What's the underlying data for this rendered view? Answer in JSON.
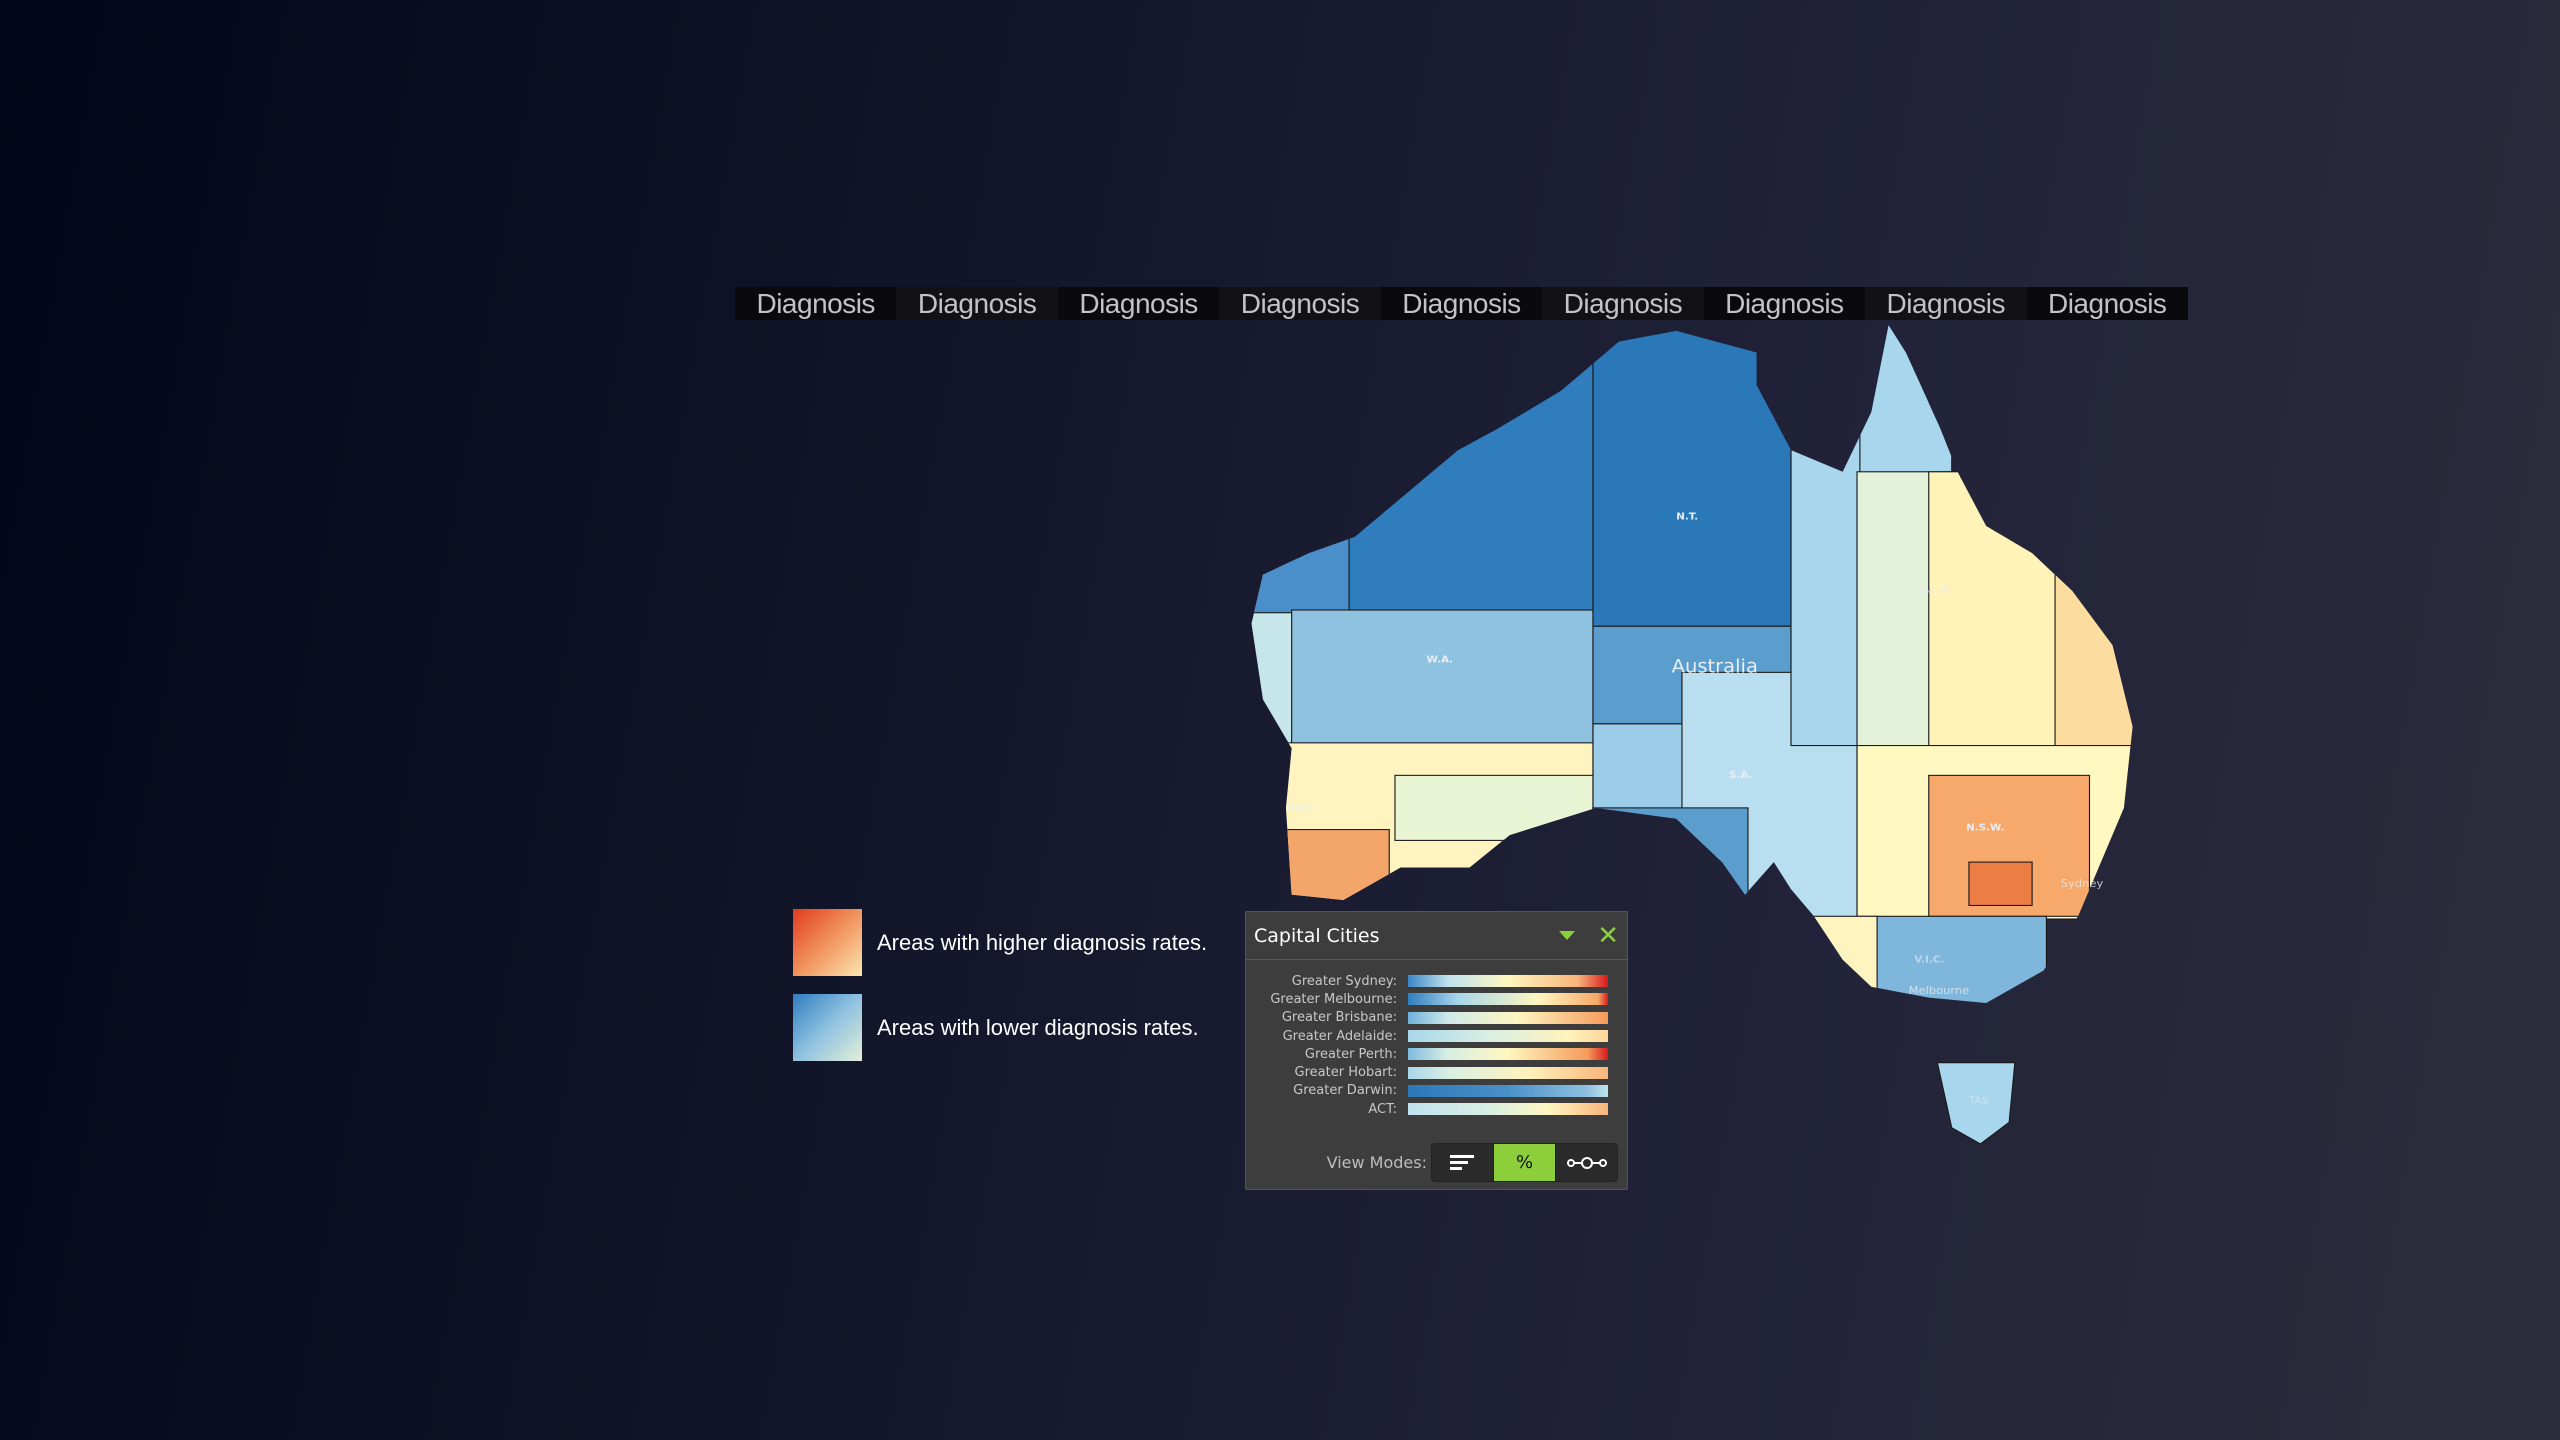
{
  "tabs": [
    "Diagnosis",
    "Diagnosis",
    "Diagnosis",
    "Diagnosis",
    "Diagnosis",
    "Diagnosis",
    "Diagnosis",
    "Diagnosis",
    "Diagnosis"
  ],
  "legend": {
    "higher": {
      "label": "Areas with higher diagnosis rates.",
      "color_from": "#e03a1e",
      "color_to": "#fbe6b0"
    },
    "lower": {
      "label": "Areas with lower diagnosis rates.",
      "color_from": "#2f7dc0",
      "color_to": "#e2efd8"
    }
  },
  "map": {
    "country_label": "Australia",
    "state_labels": {
      "nt": "N.T.",
      "wa": "W.A.",
      "qld": "Q.L.D.",
      "sa": "S.A.",
      "nsw": "N.S.W.",
      "vic": "V.I.C.",
      "tas": "TAS"
    },
    "city_labels": {
      "perth": "Perth",
      "sydney": "Sydney",
      "melbourne": "Melbourne"
    }
  },
  "panel": {
    "title": "Capital Cities",
    "dropdown_icon": "caret-down-icon",
    "close_icon": "close-icon",
    "rows": [
      {
        "label": "Greater Sydney:",
        "gradient": "#3b86c6,#bfe2ee 20%,#fff6c0 50%,#f8b57a 85%,#d7191c"
      },
      {
        "label": "Greater Melbourne:",
        "gradient": "#2f7dc0,#a9d6ea 25%,#fff6c0 65%,#f6a868 95%,#d7191c"
      },
      {
        "label": "Greater Brisbane:",
        "gradient": "#6fb0dc,#cfe9e8 20%,#fff6c0 55%,#f59a5a"
      },
      {
        "label": "Greater Adelaide:",
        "gradient": "#a9d6ea,#d8efe4 40%,#fff2bc 80%,#fdd59a"
      },
      {
        "label": "Greater Perth:",
        "gradient": "#7fbbe0,#d8efe4 20%,#fff6c0 50%,#f59a5a 90%,#d7191c"
      },
      {
        "label": "Greater Hobart:",
        "gradient": "#a9d6ea,#d8efe4 20%,#fff2bc 60%,#f8b57a"
      },
      {
        "label": "Greater Darwin:",
        "gradient": "#2b78b8,#4a90c8 50%,#8fc1e0 90%,#bfe2ee"
      },
      {
        "label": "ACT:",
        "gradient": "#bfe2ee,#d8efe4 40%,#fff6c0 70%,#f8b57a"
      }
    ],
    "view_modes_label": "View Modes:",
    "view_modes": [
      {
        "name": "bars",
        "icon": "bars-icon",
        "active": false
      },
      {
        "name": "percent",
        "label": "%",
        "active": true
      },
      {
        "name": "range",
        "icon": "range-icon",
        "active": false
      }
    ],
    "accent": "#8ccf3a"
  }
}
